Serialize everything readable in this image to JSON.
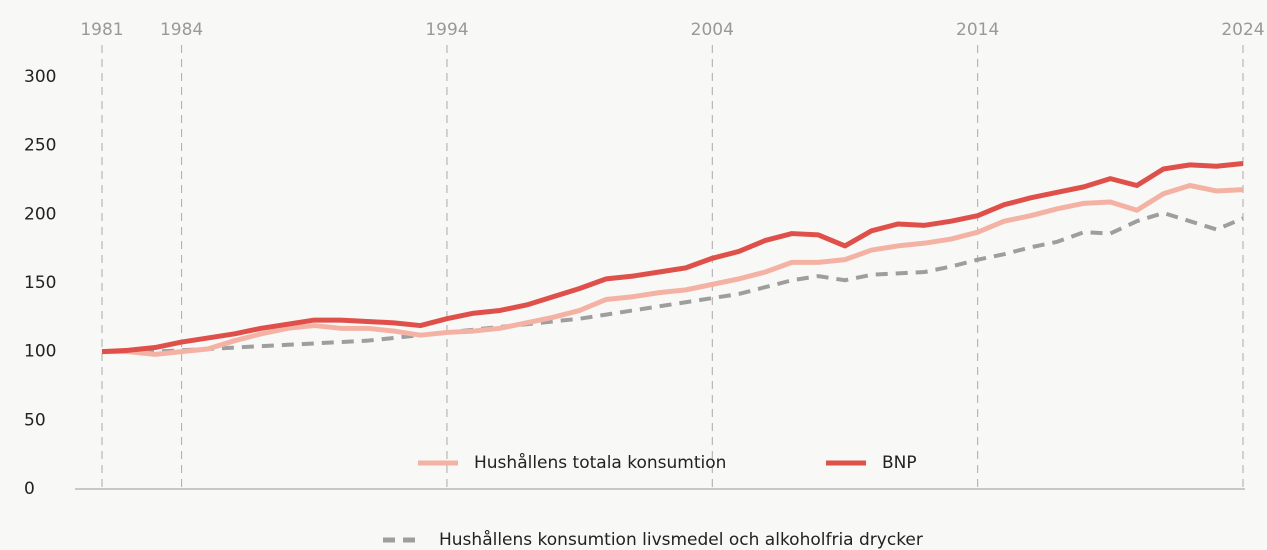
{
  "chart_data": {
    "type": "line",
    "x": [
      1981,
      1982,
      1983,
      1984,
      1985,
      1986,
      1987,
      1988,
      1989,
      1990,
      1991,
      1992,
      1993,
      1994,
      1995,
      1996,
      1997,
      1998,
      1999,
      2000,
      2001,
      2002,
      2003,
      2004,
      2005,
      2006,
      2007,
      2008,
      2009,
      2010,
      2011,
      2012,
      2013,
      2014,
      2015,
      2016,
      2017,
      2018,
      2019,
      2020,
      2021,
      2022,
      2023,
      2024
    ],
    "series": [
      {
        "name": "Hushållens totala konsumtion",
        "color": "#f4b2a5",
        "dash": false,
        "values": [
          100,
          100,
          98,
          100,
          102,
          108,
          113,
          117,
          119,
          117,
          117,
          115,
          112,
          114,
          115,
          117,
          121,
          125,
          130,
          138,
          140,
          143,
          145,
          149,
          153,
          158,
          165,
          165,
          167,
          174,
          177,
          179,
          182,
          187,
          195,
          199,
          204,
          208,
          209,
          203,
          215,
          221,
          217,
          218
        ]
      },
      {
        "name": "BNP",
        "color": "#e0504a",
        "dash": false,
        "values": [
          100,
          101,
          103,
          107,
          110,
          113,
          117,
          120,
          123,
          123,
          122,
          121,
          119,
          124,
          128,
          130,
          134,
          140,
          146,
          153,
          155,
          158,
          161,
          168,
          173,
          181,
          186,
          185,
          177,
          188,
          193,
          192,
          195,
          199,
          207,
          212,
          216,
          220,
          226,
          221,
          233,
          236,
          235,
          237
        ]
      },
      {
        "name": "Hushållens konsumtion livsmedel och alkoholfria drycker",
        "color": "#9e9e9e",
        "dash": true,
        "values": [
          100,
          100,
          100,
          101,
          102,
          103,
          104,
          105,
          106,
          107,
          108,
          110,
          112,
          114,
          116,
          118,
          120,
          122,
          124,
          127,
          130,
          133,
          136,
          139,
          142,
          147,
          152,
          155,
          152,
          156,
          157,
          158,
          162,
          167,
          171,
          176,
          180,
          187,
          186,
          195,
          201,
          195,
          189,
          197
        ]
      }
    ],
    "xlim": [
      1981,
      2024
    ],
    "xticks": [
      1981,
      1984,
      1994,
      2004,
      2014,
      2024
    ],
    "ylim": [
      0,
      300
    ],
    "yticks": [
      0,
      50,
      100,
      150,
      200,
      250,
      300
    ]
  }
}
